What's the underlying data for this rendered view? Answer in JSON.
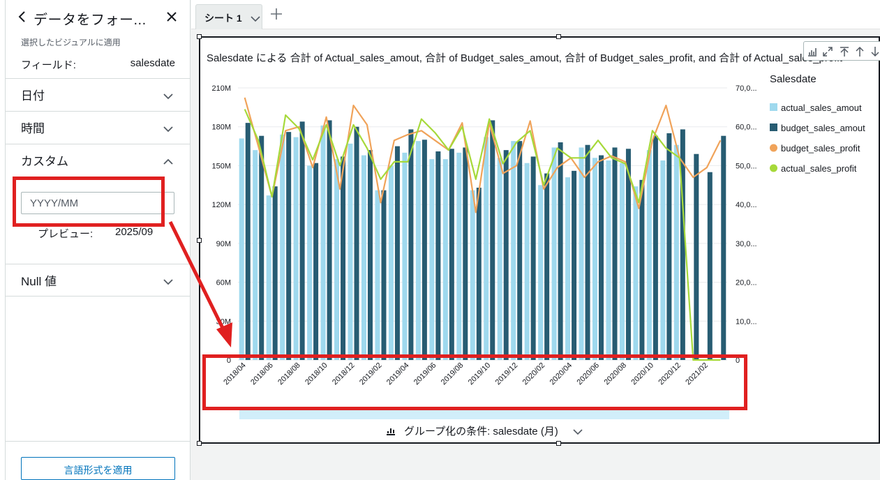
{
  "left_panel": {
    "title": "データをフォー...",
    "subtitle": "選択したビジュアルに適用",
    "field_label": "フィールド:",
    "field_value": "salesdate",
    "sections": {
      "date": "日付",
      "time": "時間",
      "custom": "カスタム",
      "null": "Null 値"
    },
    "format_input": {
      "value": "YYYY/MM",
      "placeholder": ""
    },
    "preview_label": "プレビュー:",
    "preview_value": "2025/09",
    "apply_button": "言語形式を適用"
  },
  "topbar": {
    "sheet_tab": "シート 1"
  },
  "visual": {
    "title": "Salesdate による 合計 of Actual_sales_amout, 合計 of Budget_sales_amout, 合計 of Budget_sales_profit, and 合計 of Actual_sales_profit",
    "group_by_label": "グループ化の条件: salesdate (月)"
  },
  "colors": {
    "actual_sales_amout": "#9fd9ee",
    "budget_sales_amout": "#275c72",
    "budget_sales_profit": "#f0a35a",
    "actual_sales_profit": "#a6d93a",
    "annotation": "#e02020"
  },
  "chart_data": {
    "type": "bar",
    "legend_title": "Salesdate",
    "legend_position": "right",
    "x_tick_labels": [
      "2018/04",
      "2018/06",
      "2018/08",
      "2018/10",
      "2018/12",
      "2019/02",
      "2019/04",
      "2019/06",
      "2019/08",
      "2019/10",
      "2019/12",
      "2020/02",
      "2020/04",
      "2020/06",
      "2020/08",
      "2020/10",
      "2020/12",
      "2021/02"
    ],
    "y_left_ticks": [
      "0",
      "30M",
      "60M",
      "90M",
      "120M",
      "150M",
      "180M",
      "210M"
    ],
    "y_right_ticks": [
      "0",
      "10,0...",
      "20,0...",
      "30,0...",
      "40,0...",
      "50,0...",
      "60,0...",
      "70,0..."
    ],
    "ylim_left": [
      0,
      210000000
    ],
    "ylim_right": [
      0,
      70000000
    ],
    "categories": [
      "2018/04",
      "2018/05",
      "2018/06",
      "2018/07",
      "2018/08",
      "2018/09",
      "2018/10",
      "2018/11",
      "2018/12",
      "2019/01",
      "2019/02",
      "2019/03",
      "2019/04",
      "2019/05",
      "2019/06",
      "2019/07",
      "2019/08",
      "2019/09",
      "2019/10",
      "2019/11",
      "2019/12",
      "2020/01",
      "2020/02",
      "2020/03",
      "2020/04",
      "2020/05",
      "2020/06",
      "2020/07",
      "2020/08",
      "2020/09",
      "2020/10",
      "2020/11",
      "2020/12",
      "2021/01",
      "2021/02",
      "2021/03"
    ],
    "series": [
      {
        "name": "actual_sales_amout",
        "kind": "bar",
        "axis": "left",
        "values": [
          171000000,
          162000000,
          127000000,
          174000000,
          172000000,
          150000000,
          181000000,
          155000000,
          167000000,
          158000000,
          131000000,
          150000000,
          160000000,
          169000000,
          155000000,
          155000000,
          160000000,
          131000000,
          172000000,
          156000000,
          169000000,
          152000000,
          135000000,
          164000000,
          141000000,
          164000000,
          156000000,
          154000000,
          152000000,
          134000000,
          162000000,
          154000000,
          166000000,
          0,
          0,
          0
        ]
      },
      {
        "name": "budget_sales_amout",
        "kind": "bar",
        "axis": "left",
        "values": [
          183000000,
          173000000,
          134000000,
          176000000,
          184000000,
          152000000,
          185000000,
          157000000,
          180000000,
          162000000,
          131000000,
          165000000,
          178000000,
          170000000,
          161000000,
          163000000,
          164000000,
          133000000,
          185000000,
          162000000,
          169000000,
          157000000,
          144000000,
          168000000,
          146000000,
          166000000,
          158000000,
          164000000,
          163000000,
          139000000,
          173000000,
          175000000,
          178000000,
          159000000,
          145000000,
          173000000
        ]
      },
      {
        "name": "budget_sales_profit",
        "kind": "line",
        "axis": "right",
        "values": [
          67500000,
          55000000,
          42000000,
          59000000,
          60000000,
          49500000,
          62500000,
          44000000,
          65500000,
          60500000,
          40500000,
          56500000,
          58000000,
          59000000,
          56500000,
          54000000,
          61000000,
          38000000,
          61000000,
          48000000,
          50000000,
          61500000,
          44000000,
          49500000,
          52000000,
          47000000,
          51000000,
          52500000,
          51000000,
          39000000,
          56500000,
          65500000,
          52000000,
          47000000,
          49500000,
          56500000
        ]
      },
      {
        "name": "actual_sales_profit",
        "kind": "line",
        "axis": "right",
        "values": [
          64500000,
          56500000,
          42000000,
          63000000,
          59500000,
          51500000,
          60500000,
          50000000,
          60500000,
          54500000,
          46500000,
          51000000,
          51000000,
          62000000,
          58500000,
          54000000,
          60000000,
          46500000,
          62000000,
          50500000,
          56000000,
          59000000,
          45000000,
          54500000,
          52000000,
          52000000,
          56500000,
          52000000,
          50500000,
          40500000,
          59000000,
          54500000,
          52000000,
          0,
          0,
          0
        ]
      }
    ]
  }
}
